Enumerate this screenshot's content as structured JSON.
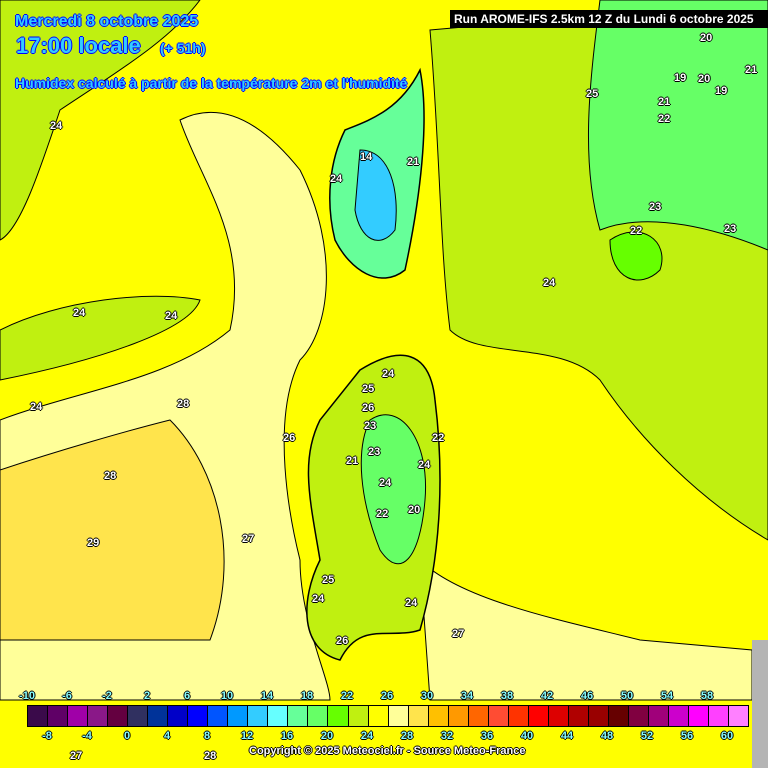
{
  "header": {
    "date": "Mercredi 8 octobre 2025",
    "time": "17:00 locale",
    "lead": "(+ 51h)",
    "description": "Humidex calculé à partir de la température 2m et l'humidité",
    "run": "Run AROME-IFS 2.5km 12 Z du Lundi 6 octobre 2025"
  },
  "contour_labels": [
    "24",
    "24",
    "24",
    "24",
    "28",
    "26",
    "28",
    "29",
    "27",
    "27",
    "24",
    "23",
    "22",
    "23",
    "25",
    "20",
    "19",
    "20",
    "21",
    "19",
    "21",
    "22",
    "14",
    "21",
    "24",
    "25",
    "24",
    "26",
    "23",
    "22",
    "23",
    "21",
    "24",
    "24",
    "22",
    "20",
    "25",
    "24",
    "24",
    "26",
    "27",
    "28"
  ],
  "colorbar": {
    "top_labels": [
      "-10",
      "-6",
      "-2",
      "2",
      "6",
      "10",
      "14",
      "18",
      "22",
      "26",
      "30",
      "34",
      "38",
      "42",
      "46",
      "50",
      "54",
      "58"
    ],
    "bottom_labels": [
      "-8",
      "-4",
      "0",
      "4",
      "8",
      "12",
      "16",
      "20",
      "24",
      "28",
      "32",
      "36",
      "40",
      "44",
      "48",
      "52",
      "56",
      "60"
    ],
    "colors": [
      "#3a0a4a",
      "#5f0066",
      "#a000a8",
      "#8a1888",
      "#640040",
      "#303060",
      "#003399",
      "#0000c8",
      "#0000ff",
      "#0055ff",
      "#0099ff",
      "#33ccff",
      "#66ffff",
      "#66ff99",
      "#66ff66",
      "#66ff00",
      "#c0f010",
      "#ffff00",
      "#ffff99",
      "#ffe44c",
      "#ffc000",
      "#ff9900",
      "#ff6600",
      "#ff4c33",
      "#ff3300",
      "#ff0000",
      "#dd0000",
      "#b00000",
      "#990000",
      "#660000",
      "#800040",
      "#a0007a",
      "#cc00cc",
      "#ff00ff",
      "#ff40ff",
      "#ff80ff"
    ]
  },
  "copyright": "Copyright © 2025 Meteociel.fr - Source Meteo-France"
}
